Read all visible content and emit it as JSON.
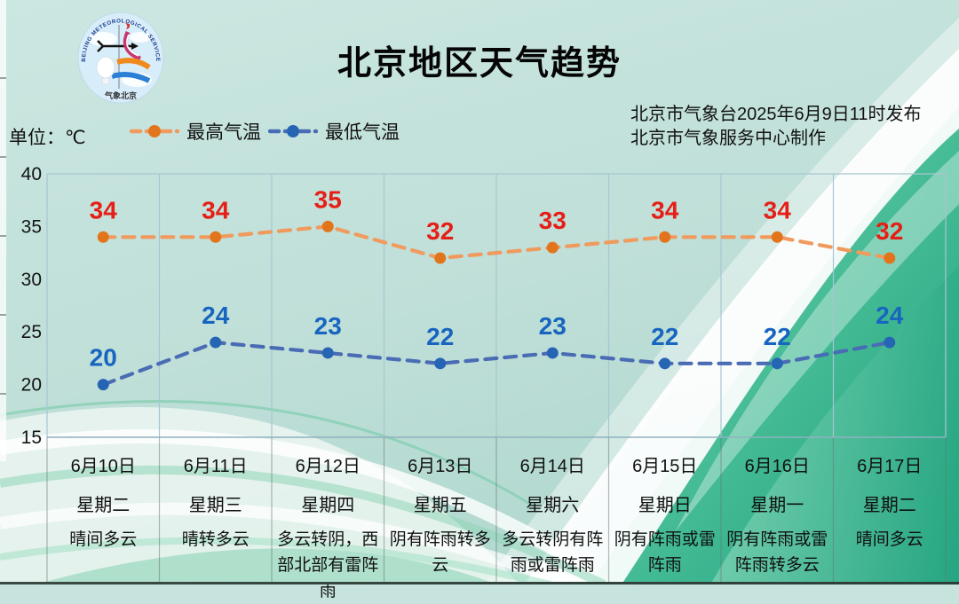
{
  "header": {
    "title": "北京地区天气趋势",
    "publisher_line1": "北京市气象台2025年6月9日11时发布",
    "publisher_line2": "北京市气象服务中心制作",
    "unit_label": "单位：℃",
    "logo": {
      "top_text": "BEIJING METEOROLOGICAL SERVICE",
      "bottom_text": "气象北京"
    }
  },
  "colors": {
    "high_line": "#F09A5E",
    "high_dot": "#E2751C",
    "high_label": "#E51F16",
    "low_line": "#4A6CB4",
    "low_dot": "#2664B4",
    "low_label": "#1865C0",
    "grid": "#A8C6D2",
    "background_teal": "#C6E3DD",
    "background_green": "#1FA07D"
  },
  "chart_data": {
    "type": "line",
    "title": "北京地区天气趋势",
    "ylabel": "℃",
    "ylim": [
      15,
      40
    ],
    "yticks": [
      40,
      35,
      30,
      25,
      20,
      15
    ],
    "grid": "vertical-only",
    "legend_position": "top-left",
    "categories": [
      "6月10日",
      "6月11日",
      "6月12日",
      "6月13日",
      "6月14日",
      "6月15日",
      "6月16日",
      "6月17日"
    ],
    "weekdays": [
      "星期二",
      "星期三",
      "星期四",
      "星期五",
      "星期六",
      "星期日",
      "星期一",
      "星期二"
    ],
    "weather": [
      "晴间多云",
      "晴转多云",
      "多云转阴，西部北部有雷阵雨",
      "阴有阵雨转多云",
      "多云转阴有阵雨或雷阵雨",
      "阴有阵雨或雷阵雨",
      "阴有阵雨或雷阵雨转多云",
      "晴间多云"
    ],
    "series": [
      {
        "name": "最高气温",
        "values": [
          34,
          34,
          35,
          32,
          33,
          34,
          34,
          32
        ],
        "line_color": "#F09A5E",
        "dot_color": "#E2751C",
        "label_color": "#E51F16"
      },
      {
        "name": "最低气温",
        "values": [
          20,
          24,
          23,
          22,
          23,
          22,
          22,
          24
        ],
        "line_color": "#4A6CB4",
        "dot_color": "#2664B4",
        "label_color": "#1865C0"
      }
    ]
  }
}
